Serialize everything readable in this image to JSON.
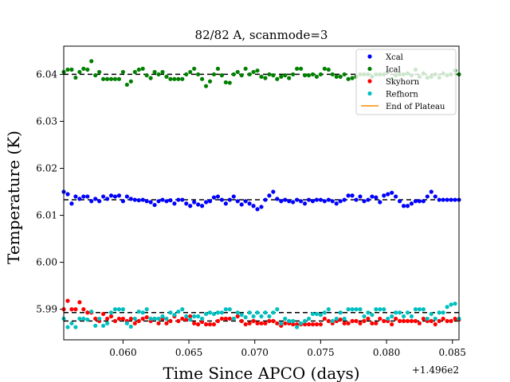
{
  "chart_data": {
    "type": "scatter",
    "title": "82/82 A, scanmode=3",
    "xlabel": "Time Since APCO (days)",
    "ylabel": "Temperature (K)",
    "x_offset_label": "+1.496e2",
    "xlim": [
      0.0555,
      0.0855
    ],
    "ylim": [
      5.9835,
      6.046
    ],
    "x_ticks": [
      0.06,
      0.065,
      0.07,
      0.075,
      0.08,
      0.085
    ],
    "x_tick_labels": [
      "0.060",
      "0.065",
      "0.070",
      "0.075",
      "0.080",
      "0.085"
    ],
    "y_ticks": [
      5.99,
      6.0,
      6.01,
      6.02,
      6.03,
      6.04
    ],
    "y_tick_labels": [
      "5.99",
      "6.00",
      "6.01",
      "6.02",
      "6.03",
      "6.04"
    ],
    "legend_position": "upper-right",
    "reference_lines": [
      {
        "series": "Ical",
        "y": 6.04
      },
      {
        "series": "Xcal",
        "y": 6.0133
      },
      {
        "series": "Refhorn",
        "y": 5.9893
      },
      {
        "series": "Skyhorn",
        "y": 5.9875
      }
    ],
    "x": [
      0.0555,
      0.0558,
      0.0561,
      0.0564,
      0.0567,
      0.057,
      0.0573,
      0.0576,
      0.0579,
      0.0582,
      0.0585,
      0.0588,
      0.0591,
      0.0594,
      0.0597,
      0.06,
      0.0603,
      0.0606,
      0.0609,
      0.0612,
      0.0615,
      0.0618,
      0.0621,
      0.0624,
      0.0627,
      0.063,
      0.0633,
      0.0636,
      0.0639,
      0.0642,
      0.0645,
      0.0648,
      0.0651,
      0.0654,
      0.0657,
      0.066,
      0.0663,
      0.0666,
      0.0669,
      0.0672,
      0.0675,
      0.0678,
      0.0681,
      0.0684,
      0.0687,
      0.069,
      0.0693,
      0.0696,
      0.0699,
      0.0702,
      0.0705,
      0.0708,
      0.0711,
      0.0714,
      0.0717,
      0.072,
      0.0723,
      0.0726,
      0.0729,
      0.0732,
      0.0735,
      0.0738,
      0.0741,
      0.0744,
      0.0747,
      0.075,
      0.0753,
      0.0756,
      0.0759,
      0.0762,
      0.0765,
      0.0768,
      0.0771,
      0.0774,
      0.0777,
      0.078,
      0.0783,
      0.0786,
      0.0789,
      0.0792,
      0.0795,
      0.0798,
      0.0801,
      0.0804,
      0.0807,
      0.081,
      0.0813,
      0.0816,
      0.0819,
      0.0822,
      0.0825,
      0.0828,
      0.0831,
      0.0834,
      0.0837,
      0.084,
      0.0843,
      0.0846,
      0.0849,
      0.0852,
      0.0855
    ],
    "series": [
      {
        "name": "Xcal",
        "color": "#0000ff",
        "values": [
          6.015,
          6.0145,
          6.0125,
          6.014,
          6.0135,
          6.014,
          6.014,
          6.013,
          6.0135,
          6.013,
          6.014,
          6.0135,
          6.0142,
          6.014,
          6.0142,
          6.013,
          6.014,
          6.0135,
          6.0133,
          6.0132,
          6.0133,
          6.013,
          6.0128,
          6.0122,
          6.013,
          6.0133,
          6.013,
          6.0132,
          6.0125,
          6.0133,
          6.0133,
          6.0125,
          6.012,
          6.0128,
          6.0123,
          6.012,
          6.0128,
          6.013,
          6.0138,
          6.014,
          6.0133,
          6.0125,
          6.0133,
          6.014,
          6.013,
          6.0123,
          6.013,
          6.0125,
          6.012,
          6.0113,
          6.0118,
          6.0133,
          6.0142,
          6.015,
          6.0135,
          6.013,
          6.0133,
          6.013,
          6.0128,
          6.0133,
          6.013,
          6.0125,
          6.0133,
          6.013,
          6.0133,
          6.0133,
          6.013,
          6.0133,
          6.013,
          6.0125,
          6.013,
          6.0133,
          6.0142,
          6.0142,
          6.0133,
          6.014,
          6.013,
          6.0133,
          6.014,
          6.0138,
          6.0128,
          6.0142,
          6.0145,
          6.0148,
          6.014,
          6.013,
          6.012,
          6.012,
          6.0125,
          6.013,
          6.013,
          6.013,
          6.014,
          6.015,
          6.014,
          6.0133,
          6.0133,
          6.0133,
          6.0133,
          6.0133,
          6.0133
        ]
      },
      {
        "name": "Ical",
        "color": "#008000",
        "values": [
          6.0405,
          6.041,
          6.041,
          6.0393,
          6.0405,
          6.0412,
          6.041,
          6.0428,
          6.0398,
          6.0405,
          6.039,
          6.039,
          6.039,
          6.039,
          6.039,
          6.0405,
          6.0378,
          6.0385,
          6.0405,
          6.041,
          6.0412,
          6.0398,
          6.0392,
          6.0405,
          6.04,
          6.0405,
          6.0395,
          6.039,
          6.039,
          6.039,
          6.039,
          6.04,
          6.0405,
          6.0412,
          6.04,
          6.039,
          6.0375,
          6.0385,
          6.04,
          6.0412,
          6.0398,
          6.0383,
          6.0382,
          6.04,
          6.0405,
          6.0398,
          6.0412,
          6.04,
          6.0405,
          6.0408,
          6.0395,
          6.0392,
          6.04,
          6.0398,
          6.039,
          6.0395,
          6.0398,
          6.0392,
          6.04,
          6.0412,
          6.0412,
          6.0398,
          6.0398,
          6.04,
          6.0395,
          6.04,
          6.0412,
          6.041,
          6.04,
          6.0395,
          6.0395,
          6.04,
          6.039,
          6.0392,
          6.0395,
          6.04,
          6.04,
          6.04,
          6.0395,
          6.04,
          6.04,
          6.04,
          6.0405,
          6.039,
          6.0398,
          6.04,
          6.04,
          6.0402,
          6.0398,
          6.041,
          6.0395,
          6.0402,
          6.0393,
          6.0395,
          6.04,
          6.0393,
          6.0402,
          6.0398,
          6.04,
          6.0408,
          6.04
        ]
      },
      {
        "name": "Skyhorn",
        "color": "#ff0000",
        "values": [
          5.99,
          5.9918,
          5.99,
          5.99,
          5.9915,
          5.99,
          5.9893,
          5.9893,
          5.988,
          5.9875,
          5.989,
          5.988,
          5.9885,
          5.9875,
          5.988,
          5.988,
          5.9875,
          5.988,
          5.987,
          5.9875,
          5.988,
          5.9883,
          5.9875,
          5.988,
          5.987,
          5.988,
          5.987,
          5.9875,
          5.9885,
          5.9875,
          5.988,
          5.9878,
          5.9885,
          5.987,
          5.9868,
          5.9873,
          5.9868,
          5.9868,
          5.9868,
          5.9875,
          5.988,
          5.988,
          5.988,
          5.988,
          5.9885,
          5.9875,
          5.9868,
          5.987,
          5.9875,
          5.987,
          5.987,
          5.987,
          5.9875,
          5.9875,
          5.987,
          5.9865,
          5.987,
          5.987,
          5.9868,
          5.9868,
          5.9868,
          5.9868,
          5.9868,
          5.9868,
          5.9868,
          5.9868,
          5.988,
          5.9875,
          5.987,
          5.9875,
          5.9878,
          5.987,
          5.987,
          5.9875,
          5.9875,
          5.987,
          5.9875,
          5.988,
          5.987,
          5.987,
          5.988,
          5.9875,
          5.9875,
          5.9868,
          5.988,
          5.9875,
          5.9875,
          5.9875,
          5.9875,
          5.9875,
          5.987,
          5.988,
          5.9875,
          5.9875,
          5.9868,
          5.9875,
          5.988,
          5.9875,
          5.9875,
          5.988,
          5.9878
        ]
      },
      {
        "name": "Refhorn",
        "color": "#00bfbf",
        "values": [
          5.988,
          5.9862,
          5.987,
          5.9862,
          5.988,
          5.988,
          5.9878,
          5.9895,
          5.9865,
          5.988,
          5.9865,
          5.987,
          5.9893,
          5.99,
          5.99,
          5.99,
          5.987,
          5.9863,
          5.988,
          5.9895,
          5.9893,
          5.99,
          5.988,
          5.988,
          5.988,
          5.9885,
          5.988,
          5.9893,
          5.9888,
          5.9895,
          5.99,
          5.9885,
          5.9878,
          5.9885,
          5.9885,
          5.988,
          5.989,
          5.9893,
          5.989,
          5.9893,
          5.9893,
          5.99,
          5.99,
          5.988,
          5.9893,
          5.9888,
          5.9883,
          5.9893,
          5.9885,
          5.9893,
          5.9885,
          5.9893,
          5.9885,
          5.9893,
          5.99,
          5.987,
          5.988,
          5.9875,
          5.9875,
          5.9862,
          5.987,
          5.9875,
          5.988,
          5.989,
          5.989,
          5.9888,
          5.9893,
          5.99,
          5.9875,
          5.988,
          5.9893,
          5.988,
          5.99,
          5.99,
          5.99,
          5.99,
          5.9885,
          5.9893,
          5.9888,
          5.99,
          5.99,
          5.99,
          5.988,
          5.9885,
          5.9893,
          5.9893,
          5.9885,
          5.9893,
          5.9885,
          5.99,
          5.99,
          5.99,
          5.988,
          5.989,
          5.988,
          5.9893,
          5.9893,
          5.9905,
          5.991,
          5.9912,
          5.988
        ]
      }
    ],
    "end_of_plateau": {
      "name": "End of Plateau",
      "color": "#ff8c00"
    }
  }
}
